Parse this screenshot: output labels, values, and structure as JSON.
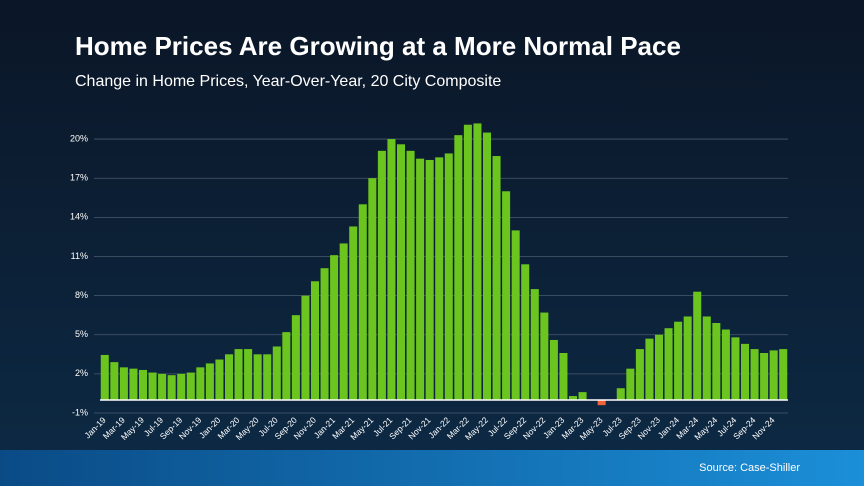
{
  "chart_data": {
    "type": "bar",
    "title": "Home Prices Are Growing at a More Normal Pace",
    "subtitle": "Change in Home Prices, Year-Over-Year, 20 City Composite",
    "source": "Source: Case-Shiller",
    "categories": [
      "Jan-19",
      null,
      "Mar-19",
      null,
      "May-19",
      null,
      "Jul-19",
      null,
      "Sep-19",
      null,
      "Nov-19",
      null,
      "Jan-20",
      null,
      "Mar-20",
      null,
      "May-20",
      null,
      "Jul-20",
      null,
      "Sep-20",
      null,
      "Nov-20",
      null,
      "Jan-21",
      null,
      "Mar-21",
      null,
      "May-21",
      null,
      "Jul-21",
      null,
      "Sep-21",
      null,
      "Nov-21",
      null,
      "Jan-22",
      null,
      "Mar-22",
      null,
      "May-22",
      null,
      "Jul-22",
      null,
      "Sep-22",
      null,
      "Nov-22",
      null,
      "Jan-23",
      null,
      "Mar-23",
      null,
      "May-23",
      null,
      "Jul-23",
      null,
      "Sep-23",
      null,
      "Nov-23",
      null,
      "Jan-24",
      null,
      "Mar-24",
      null,
      "May-24",
      null,
      "Jul-24",
      null,
      "Sep-24",
      null,
      "Nov-24",
      null
    ],
    "values": [
      3.45,
      2.9,
      2.5,
      2.4,
      2.3,
      2.1,
      2.0,
      1.9,
      2.0,
      2.1,
      2.5,
      2.8,
      3.1,
      3.5,
      3.9,
      3.9,
      3.5,
      3.5,
      4.1,
      5.2,
      6.5,
      8.0,
      9.1,
      10.1,
      11.1,
      12.0,
      13.3,
      15.0,
      17.0,
      19.1,
      20.0,
      19.6,
      19.1,
      18.5,
      18.4,
      18.6,
      18.9,
      20.3,
      21.1,
      21.2,
      20.5,
      18.7,
      16.0,
      13.0,
      10.4,
      8.5,
      6.7,
      4.6,
      3.6,
      0.3,
      0.6,
      0,
      -0.4,
      0,
      0.9,
      2.4,
      3.9,
      4.7,
      5.0,
      5.5,
      6.0,
      6.4,
      8.3,
      6.4,
      5.9,
      5.4,
      4.8,
      4.3,
      3.9,
      3.6,
      3.8,
      3.9
    ],
    "color": "#6cc51e",
    "negative_color": "#f0643c",
    "ylim": [
      -1,
      22
    ],
    "yticks": [
      {
        "value": -1,
        "label": "-1%"
      },
      {
        "value": 2,
        "label": "2%"
      },
      {
        "value": 5,
        "label": "5%"
      },
      {
        "value": 8,
        "label": "8%"
      },
      {
        "value": 11,
        "label": "11%"
      },
      {
        "value": 14,
        "label": "14%"
      },
      {
        "value": 17,
        "label": "17%"
      },
      {
        "value": 20,
        "label": "20%"
      }
    ],
    "grid": true
  }
}
